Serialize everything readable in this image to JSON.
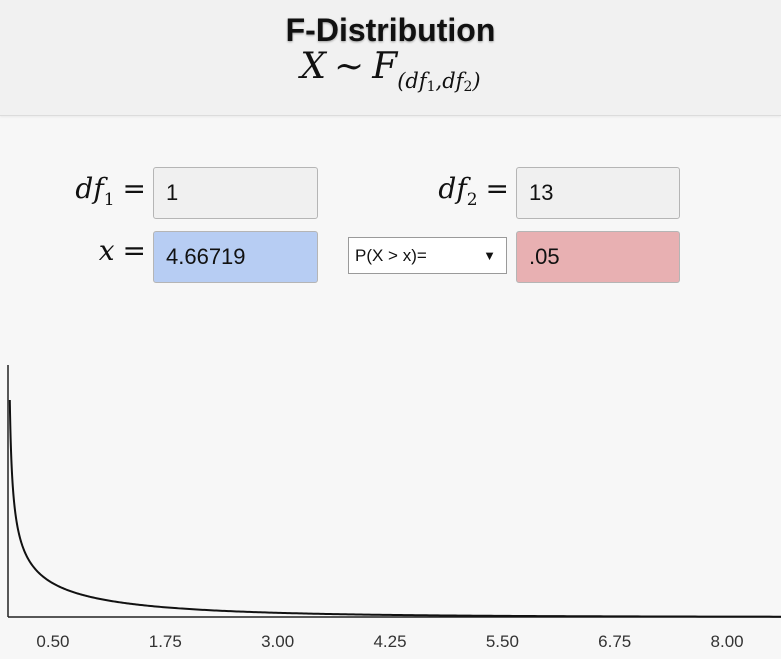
{
  "header": {
    "title": "F-Distribution",
    "formula_x": "X",
    "formula_sim": "∼",
    "formula_f": "F",
    "formula_sub_open": "(",
    "formula_sub_df": "df",
    "formula_sub_1": "1",
    "formula_sub_comma": ",",
    "formula_sub_df2": "df",
    "formula_sub_2": "2",
    "formula_sub_close": ")"
  },
  "inputs": {
    "df1_label": "df",
    "df1_sub": "1",
    "df1_eq": "=",
    "df1_value": "1",
    "df2_label": "df",
    "df2_sub": "2",
    "df2_eq": "=",
    "df2_value": "13",
    "x_label": "x",
    "x_eq": "=",
    "x_value": "4.66719",
    "prob_select": "P(X > x)=",
    "prob_value": ".05"
  },
  "chart_data": {
    "type": "line",
    "series": [
      {
        "values": "pdf of F(1,13)"
      }
    ],
    "xlim": [
      0,
      8.6
    ],
    "x_ticks": [
      "0.50",
      "1.75",
      "3.00",
      "4.25",
      "5.50",
      "6.75",
      "8.00"
    ],
    "x_tick_values": [
      0.5,
      1.75,
      3.0,
      4.25,
      5.5,
      6.75,
      8.0
    ],
    "df1": 1,
    "df2": 13
  },
  "colors": {
    "x_field": "#b7cdf3",
    "p_field": "#e8b0b2",
    "df_field": "#f0f0f0"
  },
  "icons": {
    "dropdown": "triangle-down"
  }
}
